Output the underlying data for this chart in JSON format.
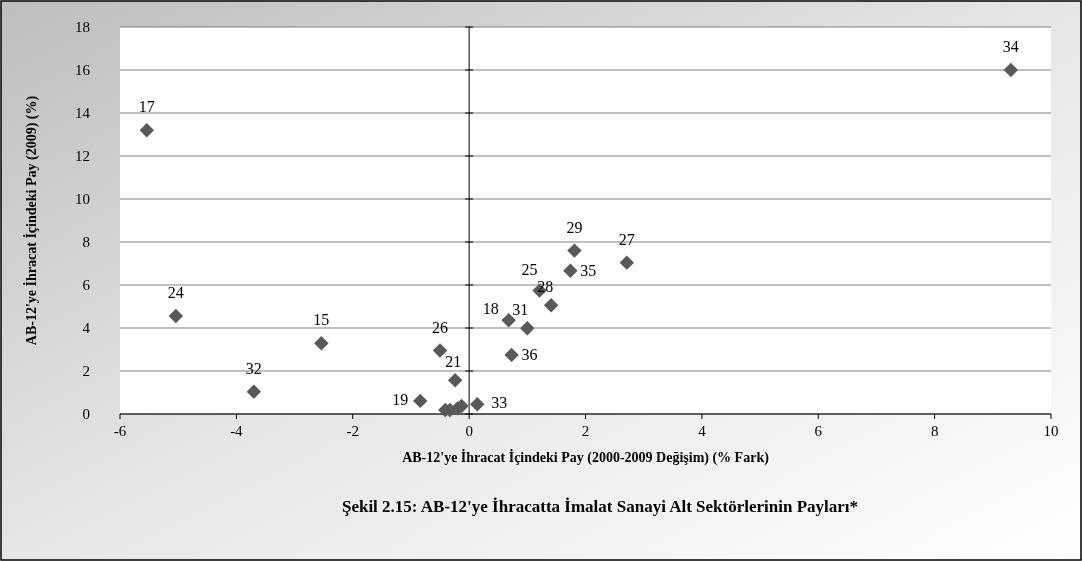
{
  "chart_data": {
    "type": "scatter",
    "title": "Şekil 2.15: AB-12'ye İhracatta İmalat Sanayi Alt Sektörlerinin Payları*",
    "xlabel": "AB-12'ye İhracat İçindeki Pay (2000-2009 Değişim) (% Fark)",
    "ylabel": "AB-12'ye İhracat İçindeki Pay (2009) (%)",
    "xlim": [
      -6,
      10
    ],
    "xticks": [
      -6,
      -4,
      -2,
      0,
      2,
      4,
      6,
      8,
      10
    ],
    "ylim": [
      0,
      18
    ],
    "yticks": [
      0,
      2,
      4,
      6,
      8,
      10,
      12,
      14,
      16,
      18
    ],
    "grid": "y",
    "marker": "diamond",
    "series": [
      {
        "color": "#595959",
        "x": [
          -5.54,
          -5.04,
          -3.7,
          -2.54,
          -0.5,
          -0.84,
          -0.24,
          -0.41,
          -0.33,
          -0.2,
          -0.13,
          0.14,
          0.73,
          0.68,
          1.0,
          1.41,
          1.21,
          1.74,
          1.81,
          2.71,
          9.31
        ],
        "values": [
          13.2,
          4.56,
          1.04,
          3.29,
          2.95,
          0.61,
          1.57,
          0.19,
          0.19,
          0.26,
          0.37,
          0.45,
          2.75,
          4.36,
          3.99,
          5.06,
          5.74,
          6.66,
          7.6,
          7.04,
          16.0
        ]
      }
    ],
    "annotations": [
      {
        "text": "17",
        "x": -5.54,
        "y": 13.2
      },
      {
        "text": "24",
        "x": -5.04,
        "y": 4.56
      },
      {
        "text": "32",
        "x": -3.7,
        "y": 1.04
      },
      {
        "text": "15",
        "x": -2.54,
        "y": 3.29
      },
      {
        "text": "26",
        "x": -0.5,
        "y": 2.95
      },
      {
        "text": "19",
        "x": -0.84,
        "y": 0.61
      },
      {
        "text": "21",
        "x": -0.24,
        "y": 1.57
      },
      {
        "text": "33",
        "x": 0.14,
        "y": 0.45
      },
      {
        "text": "36",
        "x": 0.73,
        "y": 2.75
      },
      {
        "text": "18",
        "x": 0.68,
        "y": 4.36
      },
      {
        "text": "31",
        "x": 1.0,
        "y": 3.99
      },
      {
        "text": "28",
        "x": 1.41,
        "y": 5.06
      },
      {
        "text": "25",
        "x": 1.21,
        "y": 5.74
      },
      {
        "text": "35",
        "x": 1.74,
        "y": 6.66
      },
      {
        "text": "29",
        "x": 1.81,
        "y": 7.6
      },
      {
        "text": "27",
        "x": 2.71,
        "y": 7.04
      },
      {
        "text": "34",
        "x": 9.31,
        "y": 16.0
      }
    ]
  }
}
